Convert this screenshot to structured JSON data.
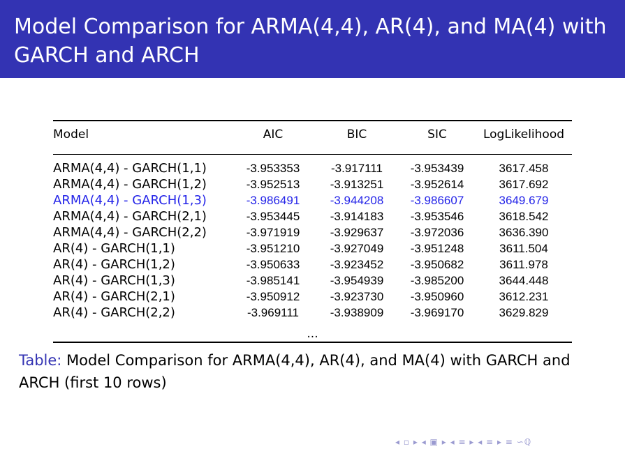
{
  "slide": {
    "title": "Model Comparison for ARMA(4,4), AR(4), and MA(4) with GARCH and ARCH"
  },
  "table": {
    "headers": [
      "Model",
      "AIC",
      "BIC",
      "SIC",
      "LogLikelihood"
    ],
    "rows": [
      [
        "ARMA(4,4) - GARCH(1,1)",
        "-3.953353",
        "-3.917111",
        "-3.953439",
        "3617.458"
      ],
      [
        "ARMA(4,4) - GARCH(1,2)",
        "-3.952513",
        "-3.913251",
        "-3.952614",
        "3617.692"
      ],
      [
        "ARMA(4,4) - GARCH(1,3)",
        "-3.986491",
        "-3.944208",
        "-3.986607",
        "3649.679"
      ],
      [
        "ARMA(4,4) - GARCH(2,1)",
        "-3.953445",
        "-3.914183",
        "-3.953546",
        "3618.542"
      ],
      [
        "ARMA(4,4) - GARCH(2,2)",
        "-3.971919",
        "-3.929637",
        "-3.972036",
        "3636.390"
      ],
      [
        "AR(4) - GARCH(1,1)",
        "-3.951210",
        "-3.927049",
        "-3.951248",
        "3611.504"
      ],
      [
        "AR(4) - GARCH(1,2)",
        "-3.950633",
        "-3.923452",
        "-3.950682",
        "3611.978"
      ],
      [
        "AR(4) - GARCH(1,3)",
        "-3.985141",
        "-3.954939",
        "-3.985200",
        "3644.448"
      ],
      [
        "AR(4) - GARCH(2,1)",
        "-3.950912",
        "-3.923730",
        "-3.950960",
        "3612.231"
      ],
      [
        "AR(4) - GARCH(2,2)",
        "-3.969111",
        "-3.938909",
        "-3.969170",
        "3629.829"
      ]
    ],
    "highlighted_row": 2,
    "highlight_color": "#2424e8",
    "ellipsis": "..."
  },
  "caption": {
    "label": "Table:",
    "text": " Model Comparison for ARMA(4,4), AR(4), and MA(4) with GARCH and ARCH (first 10 rows)"
  },
  "colors": {
    "title_bar": "#3333b3",
    "caption_label": "#3333b3",
    "nav": "#9a9ad0"
  },
  "nav": {
    "icons": [
      "nav-prev-frame-icon",
      "nav-frame-icon",
      "nav-next-frame-icon",
      "nav-prev-subsection-icon",
      "nav-subsection-icon",
      "nav-next-subsection-icon",
      "nav-prev-section-icon",
      "nav-section-icon",
      "nav-next-section-icon",
      "nav-align-icon",
      "nav-search-icon"
    ]
  }
}
